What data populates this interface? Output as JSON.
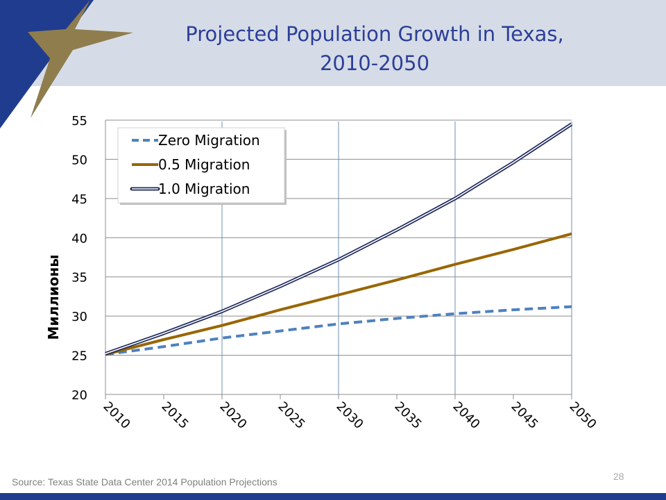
{
  "slide": {
    "title_line1": "Projected Population Growth in Texas,",
    "title_line2": "2010-2050",
    "source": "Source: Texas State Data Center 2014 Population Projections",
    "page_number": "28"
  },
  "colors": {
    "header_band": "#d6dce7",
    "title": "#2c3f98",
    "brand_blue": "#1f3c8f",
    "star_gold": "#8f7d4e"
  },
  "chart_data": {
    "type": "line",
    "ylabel": "Миллионы",
    "xlabel": "",
    "x": [
      2010,
      2015,
      2020,
      2025,
      2030,
      2035,
      2040,
      2045,
      2050
    ],
    "xlim": [
      2010,
      2050
    ],
    "ylim": [
      20,
      55
    ],
    "y_ticks": [
      20,
      25,
      30,
      35,
      40,
      45,
      50,
      55
    ],
    "x_ticks": [
      2010,
      2015,
      2020,
      2025,
      2030,
      2035,
      2040,
      2045,
      2050
    ],
    "grid": "horizontal lines at each y tick, vertical lines at each decade",
    "legend_position": "top-left",
    "series": [
      {
        "name": "Zero Migration",
        "color": "#4f81bd",
        "style": "dashed",
        "values": [
          25.1,
          26.1,
          27.2,
          28.1,
          29.0,
          29.7,
          30.3,
          30.8,
          31.2
        ]
      },
      {
        "name": "0.5 Migration",
        "color": "#996600",
        "style": "solid",
        "values": [
          25.1,
          27.0,
          28.8,
          30.8,
          32.7,
          34.6,
          36.6,
          38.5,
          40.5
        ]
      },
      {
        "name": "1.0 Migration",
        "color": "#1f2a5c",
        "style": "double",
        "values": [
          25.2,
          27.8,
          30.6,
          33.8,
          37.2,
          41.0,
          45.0,
          49.6,
          54.5
        ]
      }
    ]
  }
}
